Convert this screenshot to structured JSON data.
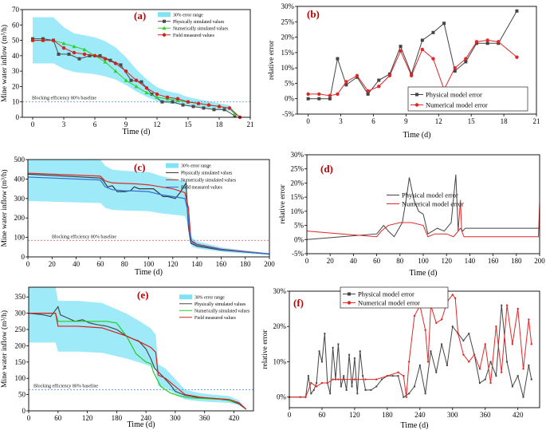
{
  "chart_data": [
    {
      "type": "line",
      "id": "a",
      "panel_label": "(a)",
      "xlabel": "Time (d)",
      "ylabel": "Mine water inflow (m³/h)",
      "xlim": [
        -1,
        21
      ],
      "ylim": [
        0,
        70
      ],
      "xticks": [
        0,
        3,
        6,
        9,
        12,
        15,
        18,
        21
      ],
      "yticks": [
        0,
        10,
        20,
        30,
        40,
        50,
        60,
        70
      ],
      "baseline": {
        "value": 10,
        "label": "Blocking efficiency 80% baseline",
        "color": "#3a86d6"
      },
      "band": {
        "name": "30% error range",
        "base_series": "Field measured values",
        "pct": 0.3,
        "color": "#7fe3f5"
      },
      "series": [
        {
          "name": "Physically simulated values",
          "color": "#4a4a4a",
          "marker": "square",
          "x": [
            0,
            1,
            2,
            2.5,
            3.5,
            4.5,
            5.5,
            6.5,
            7.5,
            8.5,
            9.5,
            10.5,
            11.5,
            12.5,
            13.5,
            14.5,
            15.5,
            16.5,
            17.5,
            18.5,
            19.5
          ],
          "y": [
            51,
            51,
            50,
            41,
            41,
            38,
            40,
            40,
            37,
            34,
            24,
            23,
            15,
            10,
            10,
            8,
            7,
            6,
            5,
            5,
            1
          ]
        },
        {
          "name": "Numerically simulated values",
          "color": "#2bd12b",
          "marker": "triangle",
          "x": [
            0,
            1,
            2,
            3,
            4,
            5,
            6,
            7,
            8,
            9,
            10,
            11,
            12,
            13,
            14,
            15,
            16,
            17,
            18,
            19,
            19.5
          ],
          "y": [
            50,
            50,
            50,
            48,
            46,
            44,
            40,
            36,
            30,
            24,
            20,
            16,
            13,
            12,
            11,
            10,
            9,
            8,
            7,
            6,
            2
          ]
        },
        {
          "name": "Field measured values",
          "color": "#d42020",
          "marker": "circle",
          "x": [
            0,
            1,
            2,
            3,
            4,
            5,
            6,
            7,
            8,
            9,
            10,
            11,
            12,
            13,
            14,
            15,
            16,
            17,
            18,
            19,
            20
          ],
          "y": [
            50,
            50,
            50,
            45,
            42,
            41,
            40,
            38,
            35,
            30,
            24,
            19,
            15,
            13,
            12,
            10,
            9,
            8,
            7,
            6,
            0
          ]
        }
      ]
    },
    {
      "type": "line",
      "id": "b",
      "panel_label": "(b)",
      "xlabel": "Time (d)",
      "ylabel": "relative error",
      "xlim": [
        -1,
        21
      ],
      "ylim": [
        -5,
        30
      ],
      "xticks": [
        0,
        3,
        6,
        9,
        12,
        15,
        18,
        21
      ],
      "yticks": [
        -5,
        0,
        5,
        10,
        15,
        20,
        25,
        30
      ],
      "yformat": "percent",
      "series": [
        {
          "name": "Physical model error",
          "color": "#444444",
          "marker": "square",
          "x": [
            0,
            1,
            2,
            2.7,
            3.5,
            4.5,
            5.5,
            6.5,
            7.5,
            8.5,
            9.5,
            10.5,
            11.5,
            12.5,
            13.5,
            14.5,
            15.5,
            16.5,
            17.5,
            19.2
          ],
          "y": [
            0,
            0,
            0,
            13,
            4.5,
            7,
            1.5,
            6,
            8,
            17,
            8,
            19,
            21.5,
            24.5,
            9,
            12,
            18,
            18,
            18,
            28.5
          ]
        },
        {
          "name": "Numerical model error",
          "color": "#e02828",
          "marker": "circle",
          "x": [
            0,
            1,
            2,
            2.7,
            3.5,
            4.5,
            5.5,
            6.5,
            7.5,
            8.5,
            9.5,
            10.5,
            11.5,
            12.5,
            13.5,
            14.5,
            15.5,
            16.5,
            17.5,
            19.2
          ],
          "y": [
            1.5,
            1.5,
            1,
            1.5,
            5.5,
            7.5,
            2.5,
            4,
            7.5,
            15.5,
            7.5,
            16,
            13,
            3,
            10,
            13,
            18.5,
            19,
            18.5,
            13.5
          ]
        }
      ]
    },
    {
      "type": "line",
      "id": "c",
      "panel_label": "(c)",
      "xlabel": "Time (d)",
      "ylabel": "Mine water inflow (m³/h)",
      "xlim": [
        0,
        200
      ],
      "ylim": [
        0,
        500
      ],
      "xticks": [
        0,
        20,
        40,
        60,
        80,
        100,
        120,
        140,
        160,
        180,
        200
      ],
      "yticks": [
        0,
        100,
        200,
        300,
        400,
        500
      ],
      "baseline": {
        "value": 85,
        "label": "Blocking efficiency 80% baseline",
        "color": "#e34a4a"
      },
      "band": {
        "name": "30% error range",
        "base_series": "Field measured values",
        "pct": 0.3,
        "color": "#7fe3f5"
      },
      "series": [
        {
          "name": "Physically simulated values",
          "color": "#3a3a3a",
          "marker": "none",
          "x": [
            0,
            60,
            62,
            66,
            70,
            74,
            80,
            85,
            88,
            92,
            100,
            104,
            108,
            112,
            116,
            122,
            126,
            130,
            131,
            132,
            133,
            135,
            140,
            160,
            200
          ],
          "y": [
            425,
            405,
            395,
            360,
            365,
            335,
            335,
            340,
            360,
            350,
            350,
            350,
            330,
            310,
            310,
            300,
            330,
            370,
            380,
            250,
            150,
            70,
            55,
            35,
            15
          ]
        },
        {
          "name": "Numerically simulated values",
          "color": "#e02828",
          "marker": "none",
          "x": [
            0,
            60,
            64,
            70,
            90,
            100,
            110,
            120,
            130,
            133,
            135,
            140,
            160,
            200
          ],
          "y": [
            430,
            415,
            390,
            380,
            375,
            370,
            360,
            350,
            330,
            250,
            85,
            65,
            40,
            15
          ]
        },
        {
          "name": "Field measured values",
          "color": "#2f6fd8",
          "marker": "none",
          "x": [
            0,
            60,
            64,
            70,
            80,
            90,
            100,
            110,
            120,
            130,
            132,
            134,
            136,
            140,
            160,
            180,
            200
          ],
          "y": [
            410,
            395,
            360,
            345,
            340,
            338,
            335,
            320,
            310,
            300,
            250,
            120,
            75,
            62,
            38,
            25,
            15
          ]
        }
      ]
    },
    {
      "type": "line",
      "id": "d",
      "panel_label": "(d)",
      "xlabel": "Time (d)",
      "ylabel": "relative error",
      "xlim": [
        0,
        200
      ],
      "ylim": [
        -5,
        30
      ],
      "xticks": [
        0,
        20,
        40,
        60,
        80,
        100,
        120,
        140,
        160,
        180,
        200
      ],
      "yticks": [
        -5,
        0,
        5,
        10,
        15,
        20,
        25,
        30
      ],
      "yformat": "percent",
      "series": [
        {
          "name": "Physical model error",
          "color": "#444444",
          "marker": "none",
          "x": [
            0,
            30,
            60,
            62,
            66,
            70,
            75,
            82,
            86,
            88,
            92,
            96,
            100,
            104,
            108,
            112,
            118,
            124,
            128,
            130,
            132,
            134,
            136,
            160,
            200
          ],
          "y": [
            0,
            1,
            2,
            3,
            5,
            3,
            1,
            6,
            16,
            22,
            14,
            10,
            9,
            2,
            3,
            4,
            3,
            6,
            23,
            3,
            4,
            3,
            4,
            4,
            4
          ]
        },
        {
          "name": "Numerical model error",
          "color": "#e02828",
          "marker": "none",
          "x": [
            0,
            30,
            60,
            64,
            70,
            80,
            86,
            90,
            100,
            104,
            110,
            120,
            126,
            130,
            132,
            133,
            135,
            140,
            160,
            199,
            200
          ],
          "y": [
            3,
            2,
            1,
            3,
            5,
            6,
            6,
            6,
            5,
            1,
            2,
            2,
            1,
            3,
            14,
            3,
            1,
            1,
            1,
            1,
            13
          ]
        }
      ]
    },
    {
      "type": "line",
      "id": "e",
      "panel_label": "(e)",
      "xlabel": "Time (d)",
      "ylabel": "Mine water inflow (m³/h)",
      "xlim": [
        0,
        460
      ],
      "ylim": [
        0,
        380
      ],
      "xticks": [
        0,
        60,
        120,
        180,
        240,
        300,
        360,
        420
      ],
      "yticks": [
        0,
        50,
        100,
        150,
        200,
        250,
        300,
        350
      ],
      "baseline": {
        "value": 65,
        "label": "Blocking efficiency 80% baseline",
        "color": "#3a86d6"
      },
      "band": {
        "name": "30% error range",
        "base_series": "Field measured values",
        "pct": 0.3,
        "color": "#7fe3f5"
      },
      "series": [
        {
          "name": "Physically simulated values",
          "color": "#4a4a4a",
          "marker": "none",
          "x": [
            0,
            30,
            45,
            55,
            60,
            65,
            80,
            95,
            110,
            125,
            140,
            160,
            180,
            200,
            215,
            225,
            240,
            250,
            258,
            265,
            275,
            290,
            300,
            320,
            350,
            380,
            410,
            430,
            445
          ],
          "y": [
            300,
            295,
            290,
            310,
            320,
            295,
            285,
            275,
            280,
            270,
            265,
            260,
            250,
            230,
            220,
            215,
            190,
            160,
            130,
            120,
            105,
            80,
            60,
            48,
            40,
            38,
            32,
            22,
            5
          ]
        },
        {
          "name": "Numerically simulated values",
          "color": "#22cc22",
          "marker": "none",
          "x": [
            0,
            55,
            60,
            100,
            140,
            160,
            180,
            200,
            220,
            240,
            250,
            255,
            270,
            290,
            310,
            330,
            360,
            400,
            430,
            445
          ],
          "y": [
            300,
            300,
            275,
            275,
            275,
            275,
            270,
            230,
            175,
            150,
            145,
            120,
            75,
            55,
            45,
            40,
            38,
            35,
            25,
            5
          ]
        },
        {
          "name": "Field measured values",
          "color": "#d42020",
          "marker": "none",
          "x": [
            0,
            55,
            60,
            100,
            150,
            200,
            230,
            250,
            260,
            265,
            280,
            300,
            320,
            350,
            380,
            410,
            430,
            445
          ],
          "y": [
            300,
            300,
            260,
            260,
            255,
            230,
            210,
            195,
            180,
            110,
            100,
            75,
            50,
            42,
            38,
            35,
            25,
            5
          ]
        }
      ]
    },
    {
      "type": "line",
      "id": "f",
      "panel_label": "(f)",
      "xlabel": "Time (d)",
      "ylabel": "relative error",
      "xlim": [
        0,
        460
      ],
      "ylim": [
        -3,
        30
      ],
      "xticks": [
        0,
        60,
        120,
        180,
        240,
        300,
        360,
        420
      ],
      "yticks": [
        0,
        10,
        20,
        30
      ],
      "yformat": "percent",
      "series": [
        {
          "name": "Physical model error",
          "color": "#444444",
          "marker": "small-square",
          "x": [
            0,
            20,
            30,
            35,
            40,
            45,
            50,
            55,
            60,
            65,
            70,
            75,
            80,
            85,
            90,
            95,
            100,
            105,
            110,
            115,
            120,
            125,
            130,
            135,
            140,
            150,
            160,
            170,
            180,
            190,
            200,
            210,
            220,
            230,
            240,
            250,
            260,
            270,
            280,
            290,
            300,
            310,
            320,
            330,
            340,
            350,
            360,
            370,
            380,
            390,
            400,
            410,
            420,
            430,
            440,
            445
          ],
          "y": [
            0,
            0,
            0,
            6,
            1,
            2,
            4,
            13,
            10,
            18,
            4,
            1,
            14,
            5,
            15,
            3,
            6,
            2,
            12,
            3,
            11,
            1,
            13,
            6,
            2,
            2,
            3,
            5,
            6,
            6,
            6,
            0,
            1,
            3,
            9,
            1,
            13,
            7,
            15,
            9,
            20,
            18,
            16,
            18,
            12,
            4,
            5,
            10,
            6,
            26,
            10,
            3,
            6,
            0,
            9,
            5
          ]
        },
        {
          "name": "Numerical model error",
          "color": "#e02828",
          "marker": "small-circle",
          "x": [
            0,
            30,
            40,
            50,
            60,
            70,
            80,
            90,
            100,
            120,
            140,
            160,
            180,
            200,
            210,
            215,
            220,
            230,
            240,
            250,
            255,
            260,
            270,
            280,
            290,
            300,
            305,
            310,
            320,
            330,
            340,
            350,
            360,
            370,
            380,
            390,
            400,
            410,
            420,
            430,
            440,
            445
          ],
          "y": [
            0,
            0,
            4,
            3,
            4,
            4,
            5,
            5,
            5,
            5,
            5,
            5,
            6,
            7,
            6,
            0,
            10,
            23,
            26,
            19,
            10,
            26,
            21,
            22,
            27,
            29,
            28,
            18,
            12,
            10,
            12,
            8,
            15,
            4,
            20,
            7,
            26,
            15,
            25,
            8,
            22,
            15
          ]
        }
      ]
    }
  ]
}
